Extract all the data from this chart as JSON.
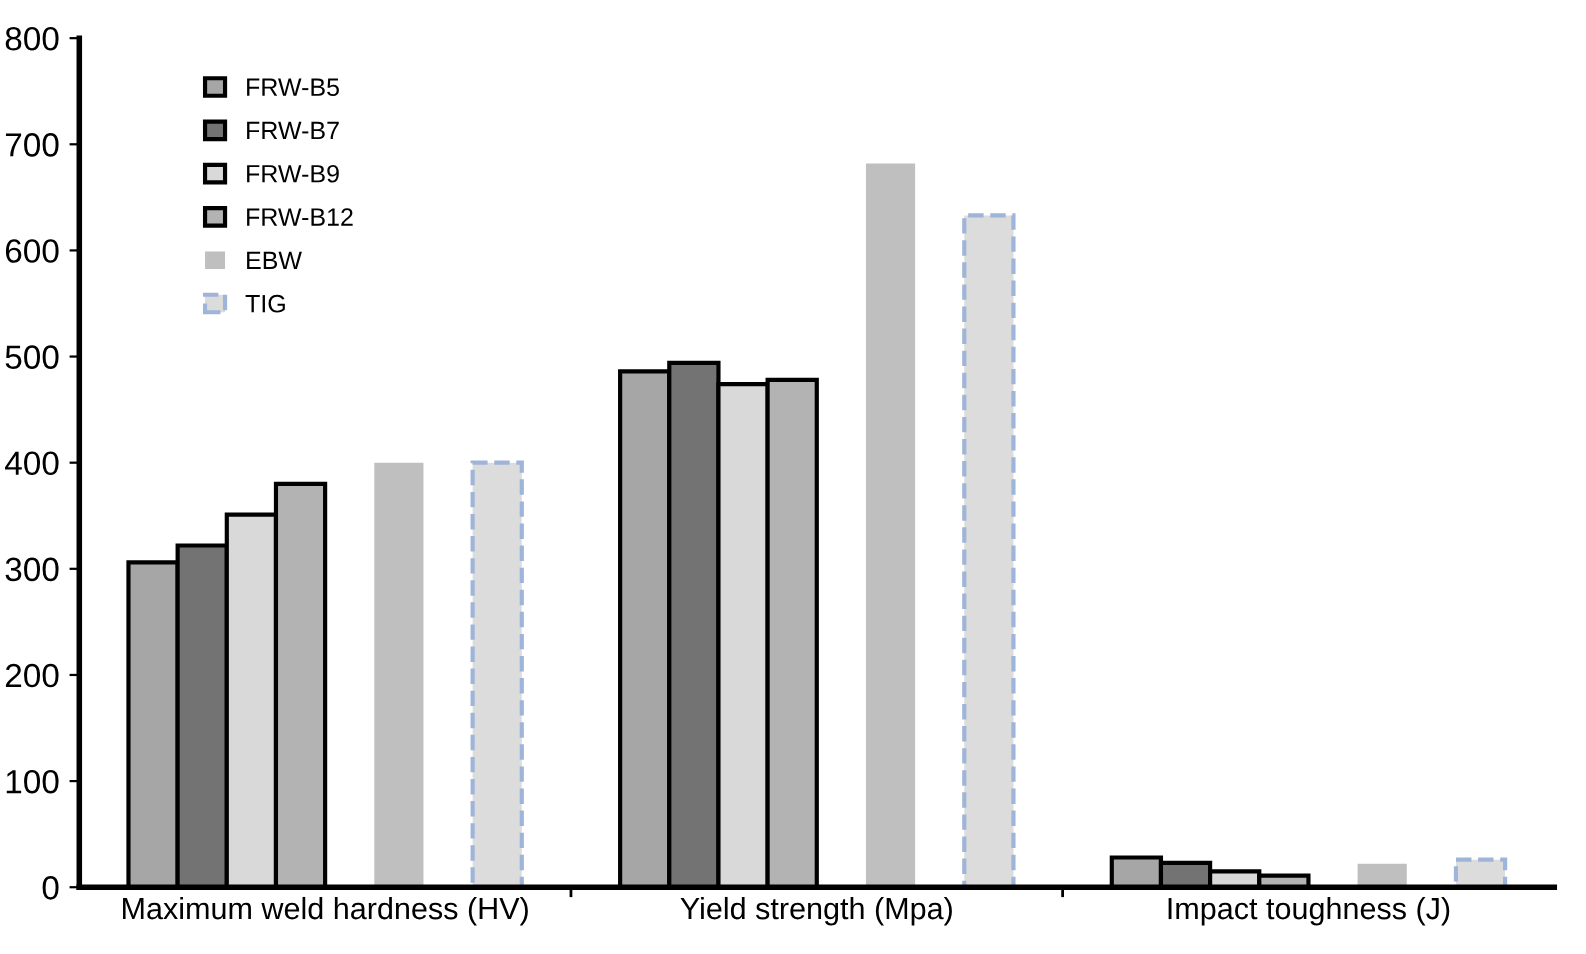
{
  "chart_data": {
    "type": "bar",
    "categories": [
      "Maximum weld hardness (HV)",
      "Yield strength (Mpa)",
      "Impact toughness (J)"
    ],
    "series": [
      {
        "name": "FRW-B5",
        "color": "#a6a6a6",
        "values": [
          306,
          486,
          28
        ]
      },
      {
        "name": "FRW-B7",
        "color": "#737373",
        "values": [
          322,
          494,
          23
        ]
      },
      {
        "name": "FRW-B9",
        "color": "#d9d9d9",
        "values": [
          351,
          474,
          15
        ]
      },
      {
        "name": "FRW-B12",
        "color": "#b3b3b3",
        "values": [
          380,
          478,
          11
        ]
      },
      {
        "name": "EBW",
        "color": "#bfbfbf",
        "values": [
          400,
          682,
          22
        ]
      },
      {
        "name": "TIG",
        "color": "#dcdcdc",
        "line_style": "dashed",
        "values": [
          400,
          633,
          26
        ]
      }
    ],
    "ylim": [
      0,
      800
    ],
    "yticks": [
      0,
      100,
      200,
      300,
      400,
      500,
      600,
      700,
      800
    ],
    "grid": false,
    "legend": "top left"
  }
}
